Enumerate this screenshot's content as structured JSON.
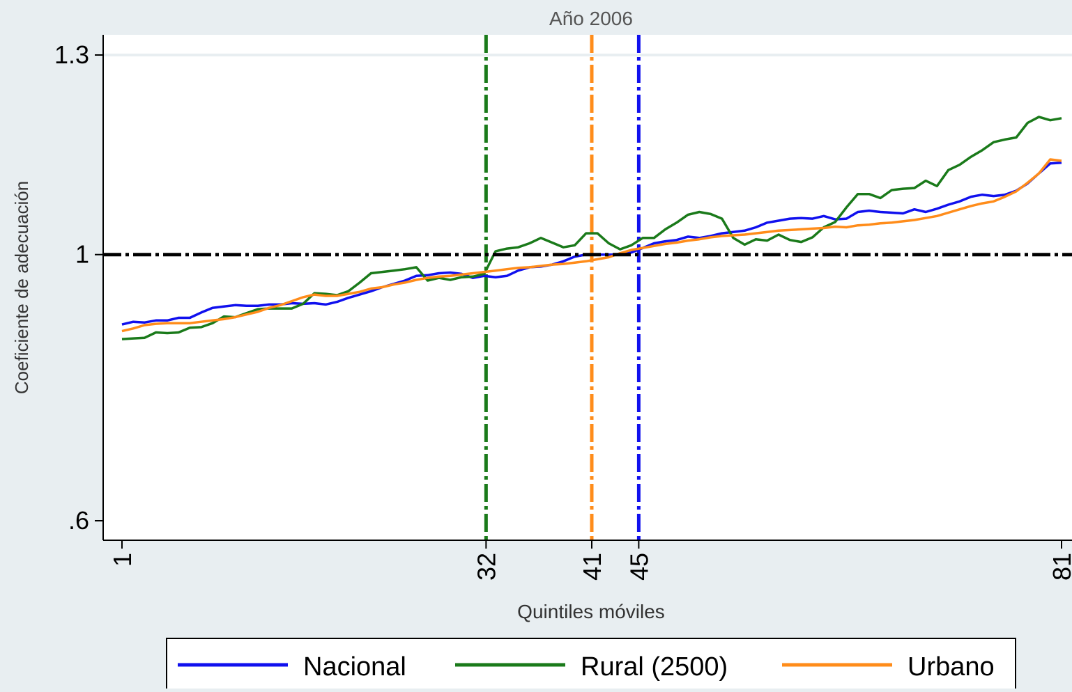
{
  "chart_data": {
    "type": "line",
    "title": "Año 2006",
    "xlabel": "Quintiles móviles",
    "ylabel": "Coeficiente de adecuación",
    "xlim": [
      1,
      81
    ],
    "ylim": [
      0.6,
      1.3
    ],
    "x_ticks": [
      "1",
      "32",
      "41",
      "45",
      "81"
    ],
    "x_tick_values": [
      1,
      32,
      41,
      45,
      81
    ],
    "y_ticks": [
      {
        "value": 0.6,
        "label": ".6"
      },
      {
        "value": 1.0,
        "label": "1"
      },
      {
        "value": 1.3,
        "label": "1.3"
      }
    ],
    "grid": "horizontal at 1.3",
    "legend_position": "bottom",
    "reference_lines": [
      {
        "axis": "y",
        "value": 1.0,
        "color": "#000000",
        "style": "dash-dot"
      },
      {
        "axis": "x",
        "value": 32,
        "color": "#1a7a1a",
        "style": "dash-dot"
      },
      {
        "axis": "x",
        "value": 41,
        "color": "#ff8c1a",
        "style": "dash-dot"
      },
      {
        "axis": "x",
        "value": 45,
        "color": "#1010ee",
        "style": "dash-dot"
      }
    ],
    "series": [
      {
        "name": "Nacional",
        "color": "#1010ee",
        "x_start": 1,
        "values": [
          0.895,
          0.899,
          0.898,
          0.901,
          0.901,
          0.905,
          0.905,
          0.913,
          0.92,
          0.922,
          0.924,
          0.923,
          0.923,
          0.925,
          0.925,
          0.927,
          0.926,
          0.927,
          0.925,
          0.929,
          0.935,
          0.94,
          0.945,
          0.951,
          0.956,
          0.961,
          0.968,
          0.969,
          0.972,
          0.973,
          0.971,
          0.965,
          0.968,
          0.966,
          0.968,
          0.976,
          0.981,
          0.982,
          0.985,
          0.99,
          0.997,
          1.0,
          1.0,
          1.0,
          1.0,
          1.003,
          1.01,
          1.017,
          1.02,
          1.022,
          1.027,
          1.025,
          1.028,
          1.032,
          1.034,
          1.036,
          1.041,
          1.048,
          1.051,
          1.054,
          1.055,
          1.054,
          1.058,
          1.053,
          1.054,
          1.064,
          1.066,
          1.064,
          1.063,
          1.062,
          1.068,
          1.064,
          1.069,
          1.075,
          1.08,
          1.087,
          1.09,
          1.088,
          1.09,
          1.096,
          1.107,
          1.122,
          1.137,
          1.138
        ]
      },
      {
        "name": "Rural (2500)",
        "color": "#1a7a1a",
        "x_start": 1,
        "values": [
          0.873,
          0.874,
          0.875,
          0.883,
          0.882,
          0.883,
          0.89,
          0.891,
          0.897,
          0.907,
          0.906,
          0.912,
          0.918,
          0.919,
          0.919,
          0.919,
          0.926,
          0.942,
          0.941,
          0.939,
          0.945,
          0.958,
          0.972,
          0.974,
          0.976,
          0.978,
          0.981,
          0.961,
          0.965,
          0.962,
          0.966,
          0.967,
          0.971,
          1.005,
          1.009,
          1.011,
          1.017,
          1.025,
          1.018,
          1.011,
          1.014,
          1.032,
          1.032,
          1.017,
          1.008,
          1.014,
          1.025,
          1.025,
          1.038,
          1.048,
          1.06,
          1.064,
          1.061,
          1.054,
          1.025,
          1.015,
          1.023,
          1.021,
          1.03,
          1.022,
          1.019,
          1.026,
          1.041,
          1.049,
          1.071,
          1.091,
          1.091,
          1.085,
          1.097,
          1.099,
          1.1,
          1.111,
          1.103,
          1.127,
          1.135,
          1.147,
          1.157,
          1.169,
          1.173,
          1.176,
          1.198,
          1.207,
          1.202,
          1.205
        ]
      },
      {
        "name": "Urbano",
        "color": "#ff8c1a",
        "x_start": 1,
        "values": [
          0.885,
          0.889,
          0.894,
          0.896,
          0.897,
          0.897,
          0.897,
          0.899,
          0.901,
          0.903,
          0.906,
          0.91,
          0.914,
          0.92,
          0.924,
          0.93,
          0.936,
          0.94,
          0.938,
          0.938,
          0.941,
          0.944,
          0.949,
          0.951,
          0.955,
          0.958,
          0.962,
          0.965,
          0.967,
          0.968,
          0.97,
          0.972,
          0.974,
          0.976,
          0.978,
          0.98,
          0.981,
          0.983,
          0.985,
          0.986,
          0.988,
          0.99,
          0.993,
          0.996,
          1.002,
          1.007,
          1.01,
          1.013,
          1.016,
          1.018,
          1.021,
          1.023,
          1.026,
          1.028,
          1.029,
          1.03,
          1.032,
          1.034,
          1.036,
          1.037,
          1.038,
          1.039,
          1.04,
          1.042,
          1.041,
          1.044,
          1.045,
          1.047,
          1.048,
          1.05,
          1.052,
          1.055,
          1.058,
          1.063,
          1.068,
          1.073,
          1.077,
          1.08,
          1.087,
          1.095,
          1.108,
          1.122,
          1.143,
          1.141
        ]
      }
    ]
  }
}
